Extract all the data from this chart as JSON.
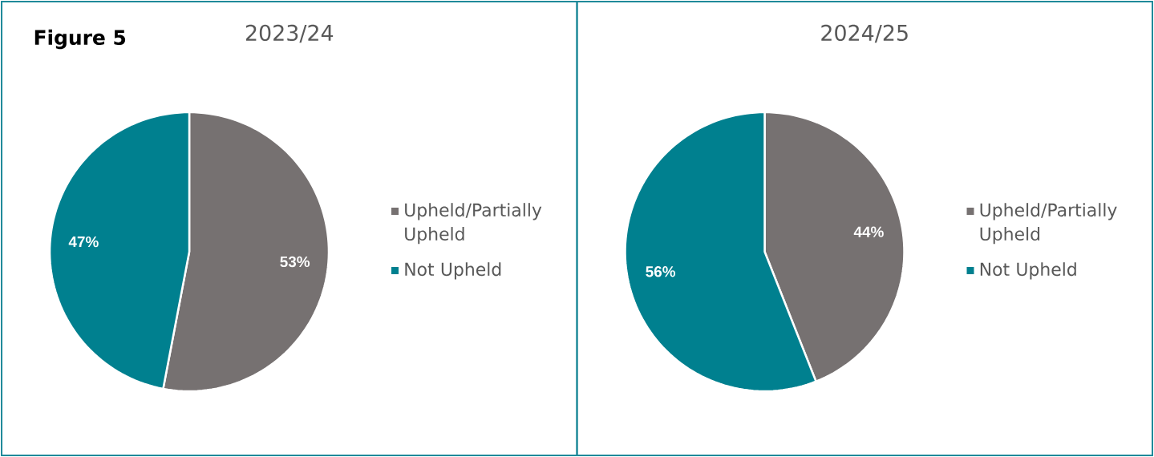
{
  "chart_data": [
    {
      "type": "pie",
      "title": "2023/24",
      "categories": [
        "Upheld/Partially Upheld",
        "Not Upheld"
      ],
      "values": [
        53,
        47
      ],
      "value_labels": [
        "53%",
        "47%"
      ],
      "colors": [
        "#767171",
        "#00808f"
      ],
      "legend": "right",
      "annotations": [
        "Figure 5"
      ]
    },
    {
      "type": "pie",
      "title": "2024/25",
      "categories": [
        "Upheld/Partially Upheld",
        "Not Upheld"
      ],
      "values": [
        44,
        56
      ],
      "value_labels": [
        "44%",
        "56%"
      ],
      "colors": [
        "#767171",
        "#00808f"
      ],
      "legend": "right"
    }
  ]
}
